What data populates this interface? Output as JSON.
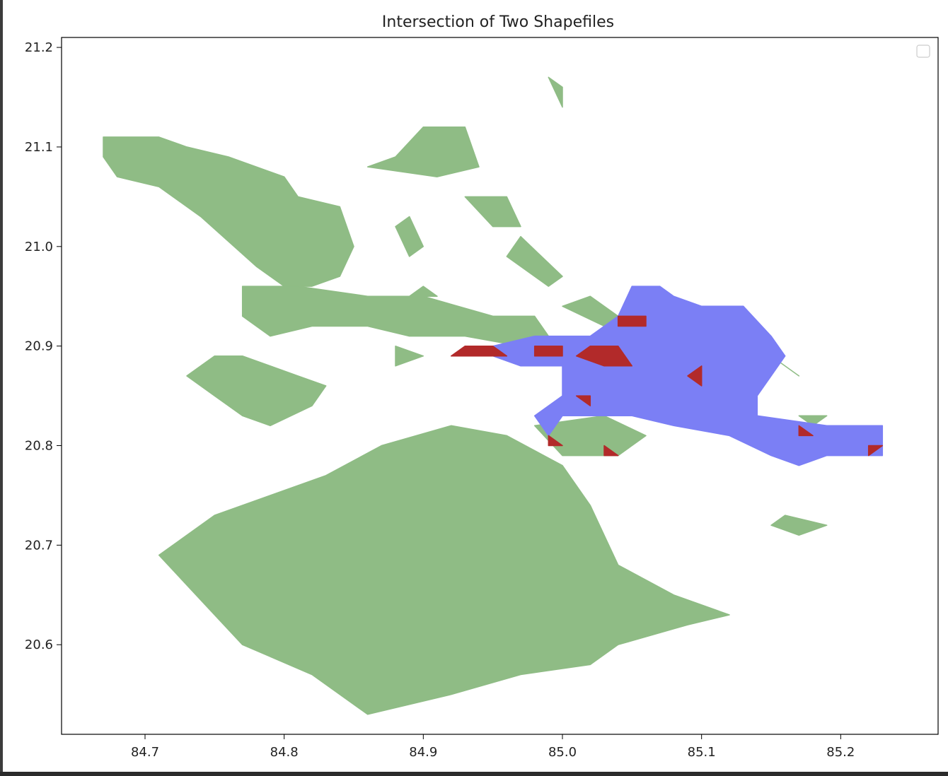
{
  "chart_data": {
    "type": "map",
    "title": "Intersection of Two Shapefiles",
    "xlabel": "",
    "ylabel": "",
    "xlim": [
      84.64,
      85.27
    ],
    "ylim": [
      20.51,
      21.21
    ],
    "xticks": [
      84.7,
      84.8,
      84.9,
      85.0,
      85.1,
      85.2
    ],
    "xtick_labels": [
      "84.7",
      "84.8",
      "84.9",
      "85.0",
      "85.1",
      "85.2"
    ],
    "yticks": [
      20.6,
      20.7,
      20.8,
      20.9,
      21.0,
      21.1,
      21.2
    ],
    "ytick_labels": [
      "20.6",
      "20.7",
      "20.8",
      "20.9",
      "21.0",
      "21.1",
      "21.2"
    ],
    "grid": false,
    "legend": {
      "position": "upper-right",
      "entries": []
    },
    "colors": {
      "layer1": "#8fbc85",
      "layer2": "#7b7ff5",
      "intersection": "#b22a2a"
    },
    "series": [
      {
        "layer": "layer1",
        "polygons": [
          [
            [
              84.67,
              21.11
            ],
            [
              84.71,
              21.11
            ],
            [
              84.73,
              21.1
            ],
            [
              84.76,
              21.09
            ],
            [
              84.78,
              21.08
            ],
            [
              84.8,
              21.07
            ],
            [
              84.81,
              21.05
            ],
            [
              84.84,
              21.04
            ],
            [
              84.85,
              21.0
            ],
            [
              84.84,
              20.97
            ],
            [
              84.82,
              20.96
            ],
            [
              84.8,
              20.96
            ],
            [
              84.78,
              20.98
            ],
            [
              84.74,
              21.03
            ],
            [
              84.71,
              21.06
            ],
            [
              84.68,
              21.07
            ],
            [
              84.67,
              21.09
            ]
          ],
          [
            [
              84.77,
              20.96
            ],
            [
              84.81,
              20.96
            ],
            [
              84.86,
              20.95
            ],
            [
              84.9,
              20.95
            ],
            [
              84.95,
              20.93
            ],
            [
              84.98,
              20.93
            ],
            [
              84.99,
              20.91
            ],
            [
              84.97,
              20.9
            ],
            [
              84.93,
              20.91
            ],
            [
              84.89,
              20.91
            ],
            [
              84.86,
              20.92
            ],
            [
              84.82,
              20.92
            ],
            [
              84.79,
              20.91
            ],
            [
              84.77,
              20.93
            ]
          ],
          [
            [
              84.73,
              20.87
            ],
            [
              84.75,
              20.89
            ],
            [
              84.77,
              20.89
            ],
            [
              84.81,
              20.87
            ],
            [
              84.83,
              20.86
            ],
            [
              84.82,
              20.84
            ],
            [
              84.79,
              20.82
            ],
            [
              84.77,
              20.83
            ],
            [
              84.75,
              20.85
            ]
          ],
          [
            [
              84.71,
              20.69
            ],
            [
              84.75,
              20.73
            ],
            [
              84.79,
              20.75
            ],
            [
              84.83,
              20.77
            ],
            [
              84.87,
              20.8
            ],
            [
              84.92,
              20.82
            ],
            [
              84.96,
              20.81
            ],
            [
              85.0,
              20.78
            ],
            [
              85.02,
              20.74
            ],
            [
              85.04,
              20.68
            ],
            [
              85.08,
              20.65
            ],
            [
              85.12,
              20.63
            ],
            [
              85.09,
              20.62
            ],
            [
              85.04,
              20.6
            ],
            [
              85.02,
              20.58
            ],
            [
              84.97,
              20.57
            ],
            [
              84.92,
              20.55
            ],
            [
              84.86,
              20.53
            ],
            [
              84.82,
              20.57
            ],
            [
              84.77,
              20.6
            ],
            [
              84.75,
              20.63
            ]
          ],
          [
            [
              84.91,
              21.07
            ],
            [
              84.94,
              21.08
            ],
            [
              84.93,
              21.12
            ],
            [
              84.9,
              21.12
            ],
            [
              84.88,
              21.09
            ],
            [
              84.86,
              21.08
            ]
          ],
          [
            [
              84.93,
              21.05
            ],
            [
              84.96,
              21.05
            ],
            [
              84.97,
              21.02
            ],
            [
              84.95,
              21.02
            ]
          ],
          [
            [
              84.88,
              21.02
            ],
            [
              84.89,
              21.03
            ],
            [
              84.9,
              21.0
            ],
            [
              84.89,
              20.99
            ]
          ],
          [
            [
              84.96,
              20.99
            ],
            [
              84.99,
              20.96
            ],
            [
              85.0,
              20.97
            ],
            [
              84.97,
              21.01
            ]
          ],
          [
            [
              84.89,
              20.95
            ],
            [
              84.9,
              20.96
            ],
            [
              84.91,
              20.95
            ]
          ],
          [
            [
              85.0,
              20.94
            ],
            [
              85.03,
              20.92
            ],
            [
              85.04,
              20.93
            ],
            [
              85.02,
              20.95
            ]
          ],
          [
            [
              84.98,
              20.82
            ],
            [
              85.0,
              20.79
            ],
            [
              85.04,
              20.79
            ],
            [
              85.06,
              20.81
            ],
            [
              85.03,
              20.83
            ]
          ],
          [
            [
              85.16,
              20.73
            ],
            [
              85.19,
              20.72
            ],
            [
              85.17,
              20.71
            ],
            [
              85.15,
              20.72
            ]
          ],
          [
            [
              85.15,
              20.89
            ],
            [
              85.16,
              20.88
            ],
            [
              85.17,
              20.87
            ]
          ],
          [
            [
              85.17,
              20.83
            ],
            [
              85.18,
              20.82
            ],
            [
              85.19,
              20.83
            ]
          ],
          [
            [
              84.99,
              21.17
            ],
            [
              85.0,
              21.16
            ],
            [
              85.0,
              21.14
            ]
          ],
          [
            [
              84.88,
              20.9
            ],
            [
              84.9,
              20.89
            ],
            [
              84.88,
              20.88
            ]
          ]
        ]
      },
      {
        "layer": "layer2",
        "polygons": [
          [
            [
              84.95,
              20.9
            ],
            [
              84.98,
              20.91
            ],
            [
              85.02,
              20.91
            ],
            [
              85.04,
              20.93
            ],
            [
              85.05,
              20.96
            ],
            [
              85.07,
              20.96
            ],
            [
              85.08,
              20.95
            ],
            [
              85.1,
              20.94
            ],
            [
              85.13,
              20.94
            ],
            [
              85.15,
              20.91
            ],
            [
              85.16,
              20.89
            ],
            [
              85.15,
              20.87
            ],
            [
              85.14,
              20.85
            ],
            [
              85.14,
              20.83
            ],
            [
              85.19,
              20.82
            ],
            [
              85.23,
              20.82
            ],
            [
              85.23,
              20.79
            ],
            [
              85.19,
              20.79
            ],
            [
              85.17,
              20.78
            ],
            [
              85.15,
              20.79
            ],
            [
              85.12,
              20.81
            ],
            [
              85.08,
              20.82
            ],
            [
              85.05,
              20.83
            ],
            [
              85.02,
              20.83
            ],
            [
              85.0,
              20.83
            ],
            [
              84.99,
              20.81
            ],
            [
              84.98,
              20.83
            ],
            [
              85.0,
              20.85
            ],
            [
              85.0,
              20.88
            ],
            [
              84.97,
              20.88
            ],
            [
              84.95,
              20.89
            ]
          ]
        ]
      },
      {
        "layer": "intersection",
        "polygons": [
          [
            [
              84.92,
              20.89
            ],
            [
              84.96,
              20.89
            ],
            [
              84.95,
              20.9
            ],
            [
              84.93,
              20.9
            ]
          ],
          [
            [
              84.98,
              20.89
            ],
            [
              85.0,
              20.89
            ],
            [
              85.0,
              20.9
            ],
            [
              84.98,
              20.9
            ]
          ],
          [
            [
              85.01,
              20.89
            ],
            [
              85.03,
              20.88
            ],
            [
              85.05,
              20.88
            ],
            [
              85.04,
              20.9
            ],
            [
              85.02,
              20.9
            ]
          ],
          [
            [
              85.04,
              20.93
            ],
            [
              85.06,
              20.93
            ],
            [
              85.06,
              20.92
            ],
            [
              85.04,
              20.92
            ]
          ],
          [
            [
              85.09,
              20.87
            ],
            [
              85.1,
              20.86
            ],
            [
              85.1,
              20.88
            ]
          ],
          [
            [
              85.01,
              20.85
            ],
            [
              85.02,
              20.84
            ],
            [
              85.02,
              20.85
            ]
          ],
          [
            [
              84.99,
              20.81
            ],
            [
              85.0,
              20.8
            ],
            [
              84.99,
              20.8
            ]
          ],
          [
            [
              85.03,
              20.8
            ],
            [
              85.04,
              20.79
            ],
            [
              85.03,
              20.79
            ]
          ],
          [
            [
              85.17,
              20.82
            ],
            [
              85.18,
              20.81
            ],
            [
              85.17,
              20.81
            ]
          ],
          [
            [
              85.22,
              20.8
            ],
            [
              85.23,
              20.8
            ],
            [
              85.22,
              20.79
            ]
          ]
        ]
      }
    ]
  }
}
